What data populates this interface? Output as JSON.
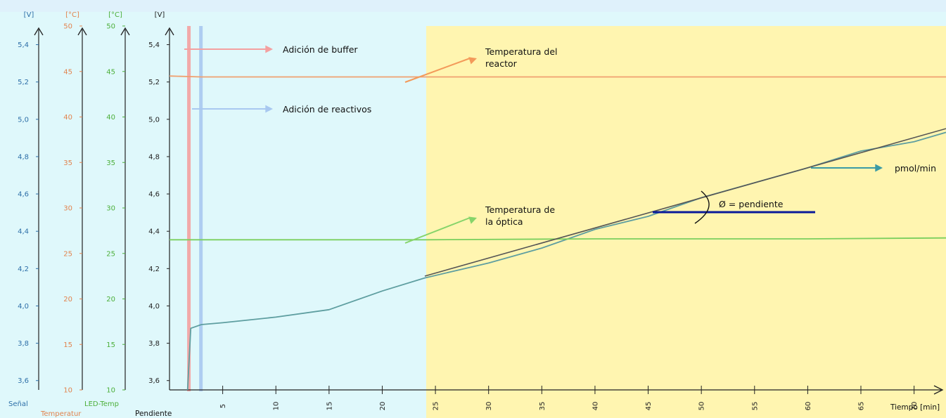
{
  "chart_data": {
    "type": "line",
    "x_axis": {
      "label": "Tiempo [min]",
      "range": [
        0,
        73
      ],
      "ticks": [
        5,
        10,
        15,
        20,
        25,
        30,
        35,
        40,
        45,
        50,
        55,
        60,
        65,
        70
      ]
    },
    "y_axes": [
      {
        "id": "senal",
        "name": "Señal",
        "unit": "[V]",
        "color": "#2e6fa8",
        "range": [
          3.55,
          5.5
        ],
        "ticks": [
          "3,6",
          "3,8",
          "4,0",
          "4,2",
          "4,4",
          "4,6",
          "4,8",
          "5,0",
          "5,2",
          "5,4"
        ]
      },
      {
        "id": "temperatura",
        "name": "Temperatur",
        "unit": "[°C]",
        "color": "#e2834e",
        "range": [
          10,
          50
        ],
        "ticks": [
          "10",
          "15",
          "20",
          "25",
          "30",
          "35",
          "40",
          "45",
          "50"
        ]
      },
      {
        "id": "led",
        "name": "LED-Temp",
        "unit": "[°C]",
        "color": "#4caf3a",
        "range": [
          10,
          50
        ],
        "ticks": [
          "10",
          "15",
          "20",
          "25",
          "30",
          "35",
          "40",
          "45",
          "50"
        ]
      },
      {
        "id": "pendiente",
        "name": "Pendiente",
        "unit": "[V]",
        "color": "#222222",
        "range": [
          3.55,
          5.5
        ],
        "ticks": [
          "3,6",
          "3,8",
          "4,0",
          "4,2",
          "4,4",
          "4,6",
          "4,8",
          "5,0",
          "5,2",
          "5,4"
        ]
      }
    ],
    "series": [
      {
        "name": "Señal",
        "axis": "senal",
        "color": "#5e9ea0",
        "points": [
          [
            1.7,
            3.55
          ],
          [
            2.0,
            3.88
          ],
          [
            3,
            3.9
          ],
          [
            5,
            3.91
          ],
          [
            10,
            3.94
          ],
          [
            15,
            3.98
          ],
          [
            20,
            4.08
          ],
          [
            24,
            4.15
          ],
          [
            30,
            4.23
          ],
          [
            35,
            4.31
          ],
          [
            40,
            4.41
          ],
          [
            45,
            4.48
          ],
          [
            50,
            4.58
          ],
          [
            55,
            4.66
          ],
          [
            60,
            4.74
          ],
          [
            65,
            4.83
          ],
          [
            70,
            4.88
          ],
          [
            73,
            4.93
          ]
        ]
      },
      {
        "name": "Temperatur",
        "axis": "temperatura",
        "color": "#f0a070",
        "points": [
          [
            0,
            44.5
          ],
          [
            3,
            44.4
          ],
          [
            10,
            44.4
          ],
          [
            24,
            44.4
          ],
          [
            40,
            44.4
          ],
          [
            60,
            44.4
          ],
          [
            73,
            44.4
          ]
        ]
      },
      {
        "name": "LED-Temp",
        "axis": "led",
        "color": "#7bcf5e",
        "points": [
          [
            0,
            26.5
          ],
          [
            10,
            26.5
          ],
          [
            24,
            26.5
          ],
          [
            40,
            26.6
          ],
          [
            60,
            26.6
          ],
          [
            73,
            26.7
          ]
        ]
      },
      {
        "name": "Pendiente",
        "axis": "pendiente",
        "color": "#555555",
        "points": [
          [
            24,
            4.16
          ],
          [
            73,
            4.95
          ]
        ]
      }
    ],
    "highlight_region": {
      "x_range": [
        24,
        73
      ],
      "color": "#fff5b0"
    },
    "markers": [
      {
        "label": "Adición de buffer",
        "x": 0.6,
        "color": "#f4a0a0"
      },
      {
        "label": "Adición de reactivos",
        "x": 1.2,
        "color": "#a8c8f0"
      }
    ],
    "annotations": [
      {
        "text": "Adición de buffer",
        "color": "#f4a0a0"
      },
      {
        "text": "Temperatura del",
        "text2": "reactor",
        "color": "#f39a5a"
      },
      {
        "text": "Adición de reactivos",
        "color": "#a8c8f0"
      },
      {
        "text": "Temperatura de",
        "text2": "la óptica",
        "color": "#86d46a"
      },
      {
        "text": "pmol/min",
        "color": "#3a9aa5"
      },
      {
        "text": "Ø = pendiente",
        "color": "#0a1a9a"
      }
    ]
  }
}
